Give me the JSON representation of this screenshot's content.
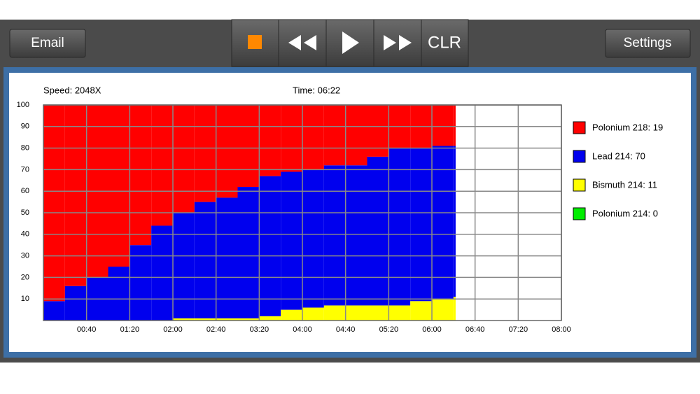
{
  "toolbar": {
    "email": "Email",
    "clear": "CLR",
    "settings": "Settings"
  },
  "status": {
    "speed": "Speed: 2048X",
    "time": "Time: 06:22"
  },
  "chart_data": {
    "type": "stacked-bar",
    "x": [
      20,
      40,
      60,
      80,
      100,
      120,
      140,
      160,
      180,
      200,
      220,
      240,
      260,
      280,
      300,
      320,
      340,
      360,
      380,
      382
    ],
    "series": [
      {
        "name": "Bismuth 214: 11",
        "color": "#ffff00",
        "values": [
          0,
          0,
          0,
          0,
          0,
          0,
          1,
          1,
          1,
          1,
          2,
          5,
          6,
          7,
          7,
          7,
          7,
          9,
          10,
          11
        ]
      },
      {
        "name": "Lead 214: 70",
        "color": "#0000ee",
        "values": [
          9,
          16,
          20,
          25,
          35,
          44,
          49,
          54,
          56,
          61,
          65,
          64,
          64,
          65,
          65,
          69,
          73,
          71,
          71,
          70
        ]
      },
      {
        "name": "Polonium 218: 19",
        "color": "#ff0000",
        "values": [
          91,
          84,
          80,
          75,
          65,
          56,
          50,
          45,
          43,
          38,
          33,
          31,
          30,
          28,
          28,
          24,
          20,
          20,
          19,
          19
        ]
      },
      {
        "name": "Polonium 214: 0",
        "color": "#00ee00",
        "values": [
          0,
          0,
          0,
          0,
          0,
          0,
          0,
          0,
          0,
          0,
          0,
          0,
          0,
          0,
          0,
          0,
          0,
          0,
          0,
          0
        ]
      }
    ],
    "legend_order": [
      2,
      1,
      0,
      3
    ],
    "xlim": [
      0,
      480
    ],
    "xticks": [
      {
        "value": 40,
        "label": "00:40"
      },
      {
        "value": 80,
        "label": "01:20"
      },
      {
        "value": 120,
        "label": "02:00"
      },
      {
        "value": 160,
        "label": "02:40"
      },
      {
        "value": 200,
        "label": "03:20"
      },
      {
        "value": 240,
        "label": "04:00"
      },
      {
        "value": 280,
        "label": "04:40"
      },
      {
        "value": 320,
        "label": "05:20"
      },
      {
        "value": 360,
        "label": "06:00"
      },
      {
        "value": 400,
        "label": "06:40"
      },
      {
        "value": 440,
        "label": "07:20"
      },
      {
        "value": 480,
        "label": "08:00"
      }
    ],
    "ylim": [
      0,
      100
    ],
    "yticks": [
      10,
      20,
      30,
      40,
      50,
      60,
      70,
      80,
      90,
      100
    ],
    "grid": true
  }
}
